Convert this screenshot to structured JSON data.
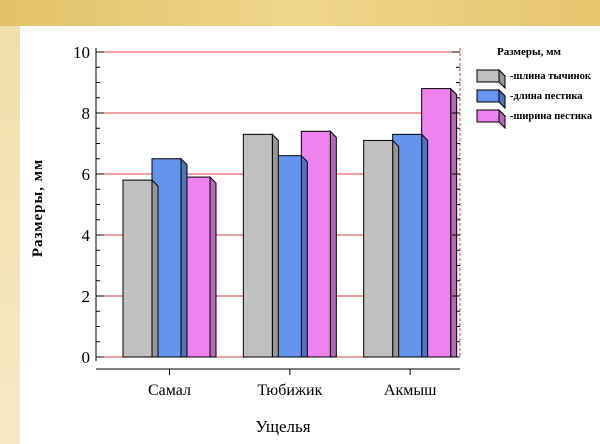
{
  "chart_data": {
    "type": "bar",
    "categories": [
      "Самал",
      "Тюбижик",
      "Акмыш"
    ],
    "series": [
      {
        "name": "-шлина тычинок",
        "values": [
          5.8,
          7.3,
          7.1
        ],
        "color": "#c0c0c0"
      },
      {
        "name": "-длина пестика",
        "values": [
          6.5,
          6.6,
          7.3
        ],
        "color": "#6495ed"
      },
      {
        "name": "-ширина пестика",
        "values": [
          5.9,
          7.4,
          8.8
        ],
        "color": "#ee82ee"
      }
    ],
    "ylim": [
      0,
      10
    ],
    "yticks": [
      "0",
      "2",
      "4",
      "6",
      "8",
      "10"
    ],
    "xlabel": "Ущелья",
    "ylabel": "Размеры,  мм",
    "legend_title": "Размеры, мм",
    "legend_position": "top-right",
    "gridline_color": "#e04040",
    "bar_edge_color": "#000000",
    "page_background": "#fdf3d3",
    "top_band_color": "#e8c874"
  }
}
